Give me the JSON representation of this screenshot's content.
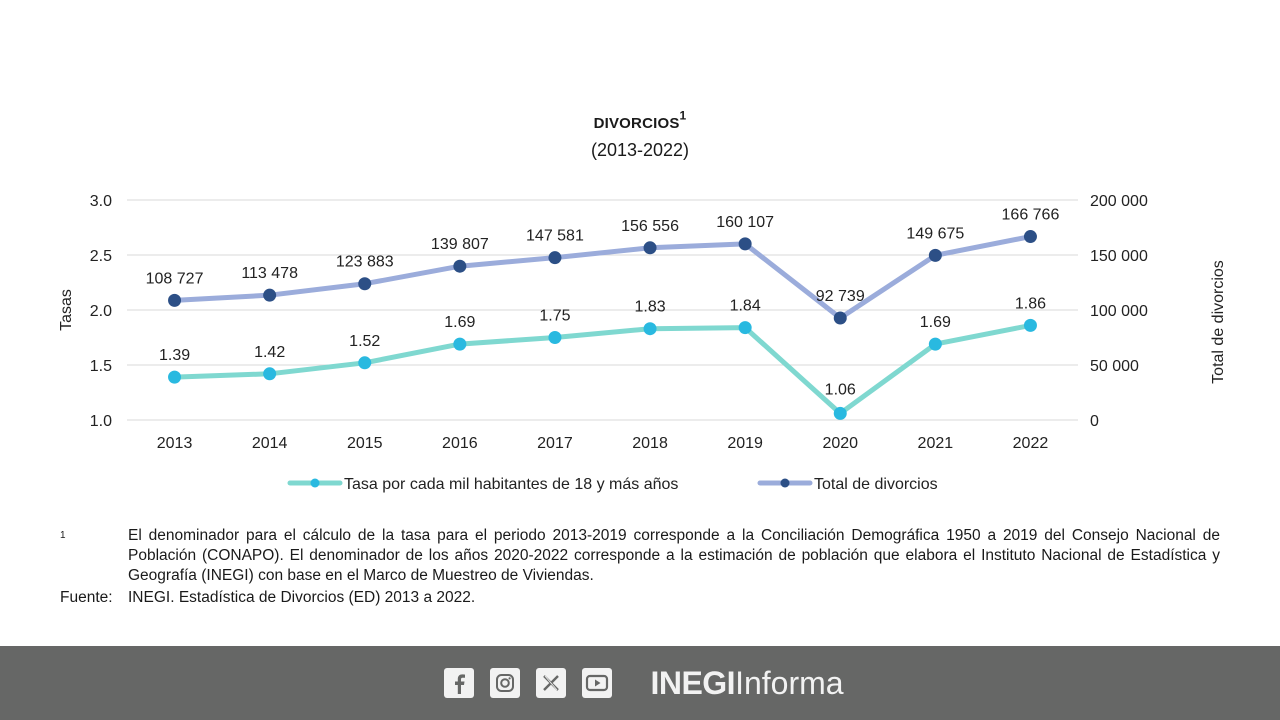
{
  "title": "Divorcios",
  "title_mark": "1",
  "subtitle": "(2013-2022)",
  "chart_data": {
    "type": "line",
    "x": [
      "2013",
      "2014",
      "2015",
      "2016",
      "2017",
      "2018",
      "2019",
      "2020",
      "2021",
      "2022"
    ],
    "series": [
      {
        "name": "Tasa por cada mil habitantes de 18 y más años",
        "axis": "left",
        "values": [
          1.39,
          1.42,
          1.52,
          1.69,
          1.75,
          1.83,
          1.84,
          1.06,
          1.69,
          1.86
        ],
        "labels": [
          "1.39",
          "1.42",
          "1.52",
          "1.69",
          "1.75",
          "1.83",
          "1.84",
          "1.06",
          "1.69",
          "1.86"
        ],
        "line_color": "#7fd8d0",
        "marker_color": "#29b9e0"
      },
      {
        "name": "Total de divorcios",
        "axis": "right",
        "values": [
          108727,
          113478,
          123883,
          139807,
          147581,
          156556,
          160107,
          92739,
          149675,
          166766
        ],
        "labels": [
          "108 727",
          "113 478",
          "123 883",
          "139 807",
          "147 581",
          "156 556",
          "160 107",
          "92 739",
          "149 675",
          "166 766"
        ],
        "line_color": "#9bacdb",
        "marker_color": "#2c4f86"
      }
    ],
    "y_left": {
      "label": "Tasas",
      "range": [
        1.0,
        3.0
      ],
      "ticks": [
        "1.0",
        "1.5",
        "2.0",
        "2.5",
        "3.0"
      ],
      "tick_values": [
        1.0,
        1.5,
        2.0,
        2.5,
        3.0
      ]
    },
    "y_right": {
      "label": "Total de divorcios",
      "range": [
        0,
        200000
      ],
      "ticks": [
        "0",
        "50 000",
        "100 000",
        "150 000",
        "200 000"
      ],
      "tick_values": [
        0,
        50000,
        100000,
        150000,
        200000
      ]
    },
    "grid": true,
    "legend": "bottom"
  },
  "footnote": {
    "mark": "1",
    "text": "El denominador para el cálculo de la tasa para el periodo 2013-2019 corresponde a la Conciliación Demográfica 1950 a 2019 del Consejo Nacional de Población (CONAPO). El denominador de los años 2020-2022 corresponde a la estimación de población que elabora el Instituto Nacional de Estadística y Geografía (INEGI) con base en el Marco de Muestreo de Viviendas.",
    "source_key": "Fuente:",
    "source_text": "INEGI. Estadística de Divorcios (ED) 2013 a 2022."
  },
  "footer": {
    "icons": [
      "facebook-icon",
      "instagram-icon",
      "x-icon",
      "youtube-icon"
    ],
    "brand_bold": "INEGI",
    "brand_light": "Informa",
    "background": "#666766"
  }
}
